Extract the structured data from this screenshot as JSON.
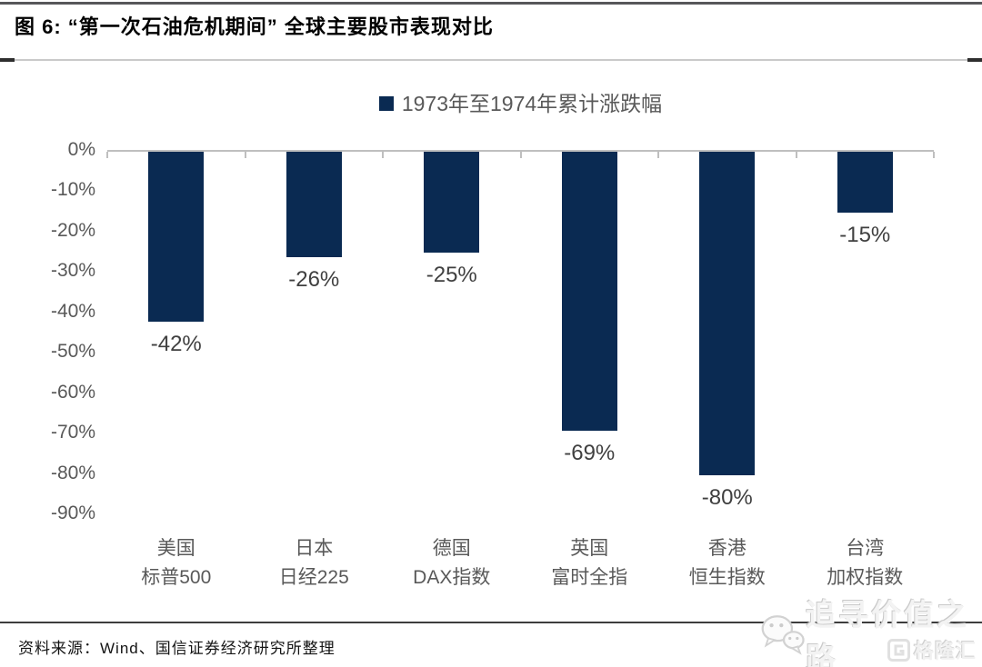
{
  "header": {
    "title": "图 6: “第一次石油危机期间” 全球主要股市表现对比"
  },
  "chart_data": {
    "type": "bar",
    "title": "1973年至1974年累计涨跌幅",
    "series": [
      {
        "name": "1973年至1974年累计涨跌幅",
        "values": [
          -42,
          -26,
          -25,
          -69,
          -80,
          -15
        ]
      }
    ],
    "categories": [
      [
        "美国",
        "标普500"
      ],
      [
        "日本",
        "日经225"
      ],
      [
        "德国",
        "DAX指数"
      ],
      [
        "英国",
        "富时全指"
      ],
      [
        "香港",
        "恒生指数"
      ],
      [
        "台湾",
        "加权指数"
      ]
    ],
    "data_labels": [
      "-42%",
      "-26%",
      "-25%",
      "-69%",
      "-80%",
      "-15%"
    ],
    "xlabel": "",
    "ylabel": "",
    "ylim": [
      -90,
      0
    ],
    "yticks": [
      "0%",
      "-10%",
      "-20%",
      "-30%",
      "-40%",
      "-50%",
      "-60%",
      "-70%",
      "-80%",
      "-90%"
    ],
    "grid": false,
    "legend_position": "top-center",
    "bar_color": "#0a2a52",
    "axis_line_color": "#bfbfbf",
    "axis_text_color": "#595959",
    "data_label_color": "#404040"
  },
  "footer": {
    "source": "资料来源：Wind、国信证券经济研究所整理"
  },
  "watermark": {
    "text": "追寻价值之路",
    "brand": "格隆汇"
  }
}
